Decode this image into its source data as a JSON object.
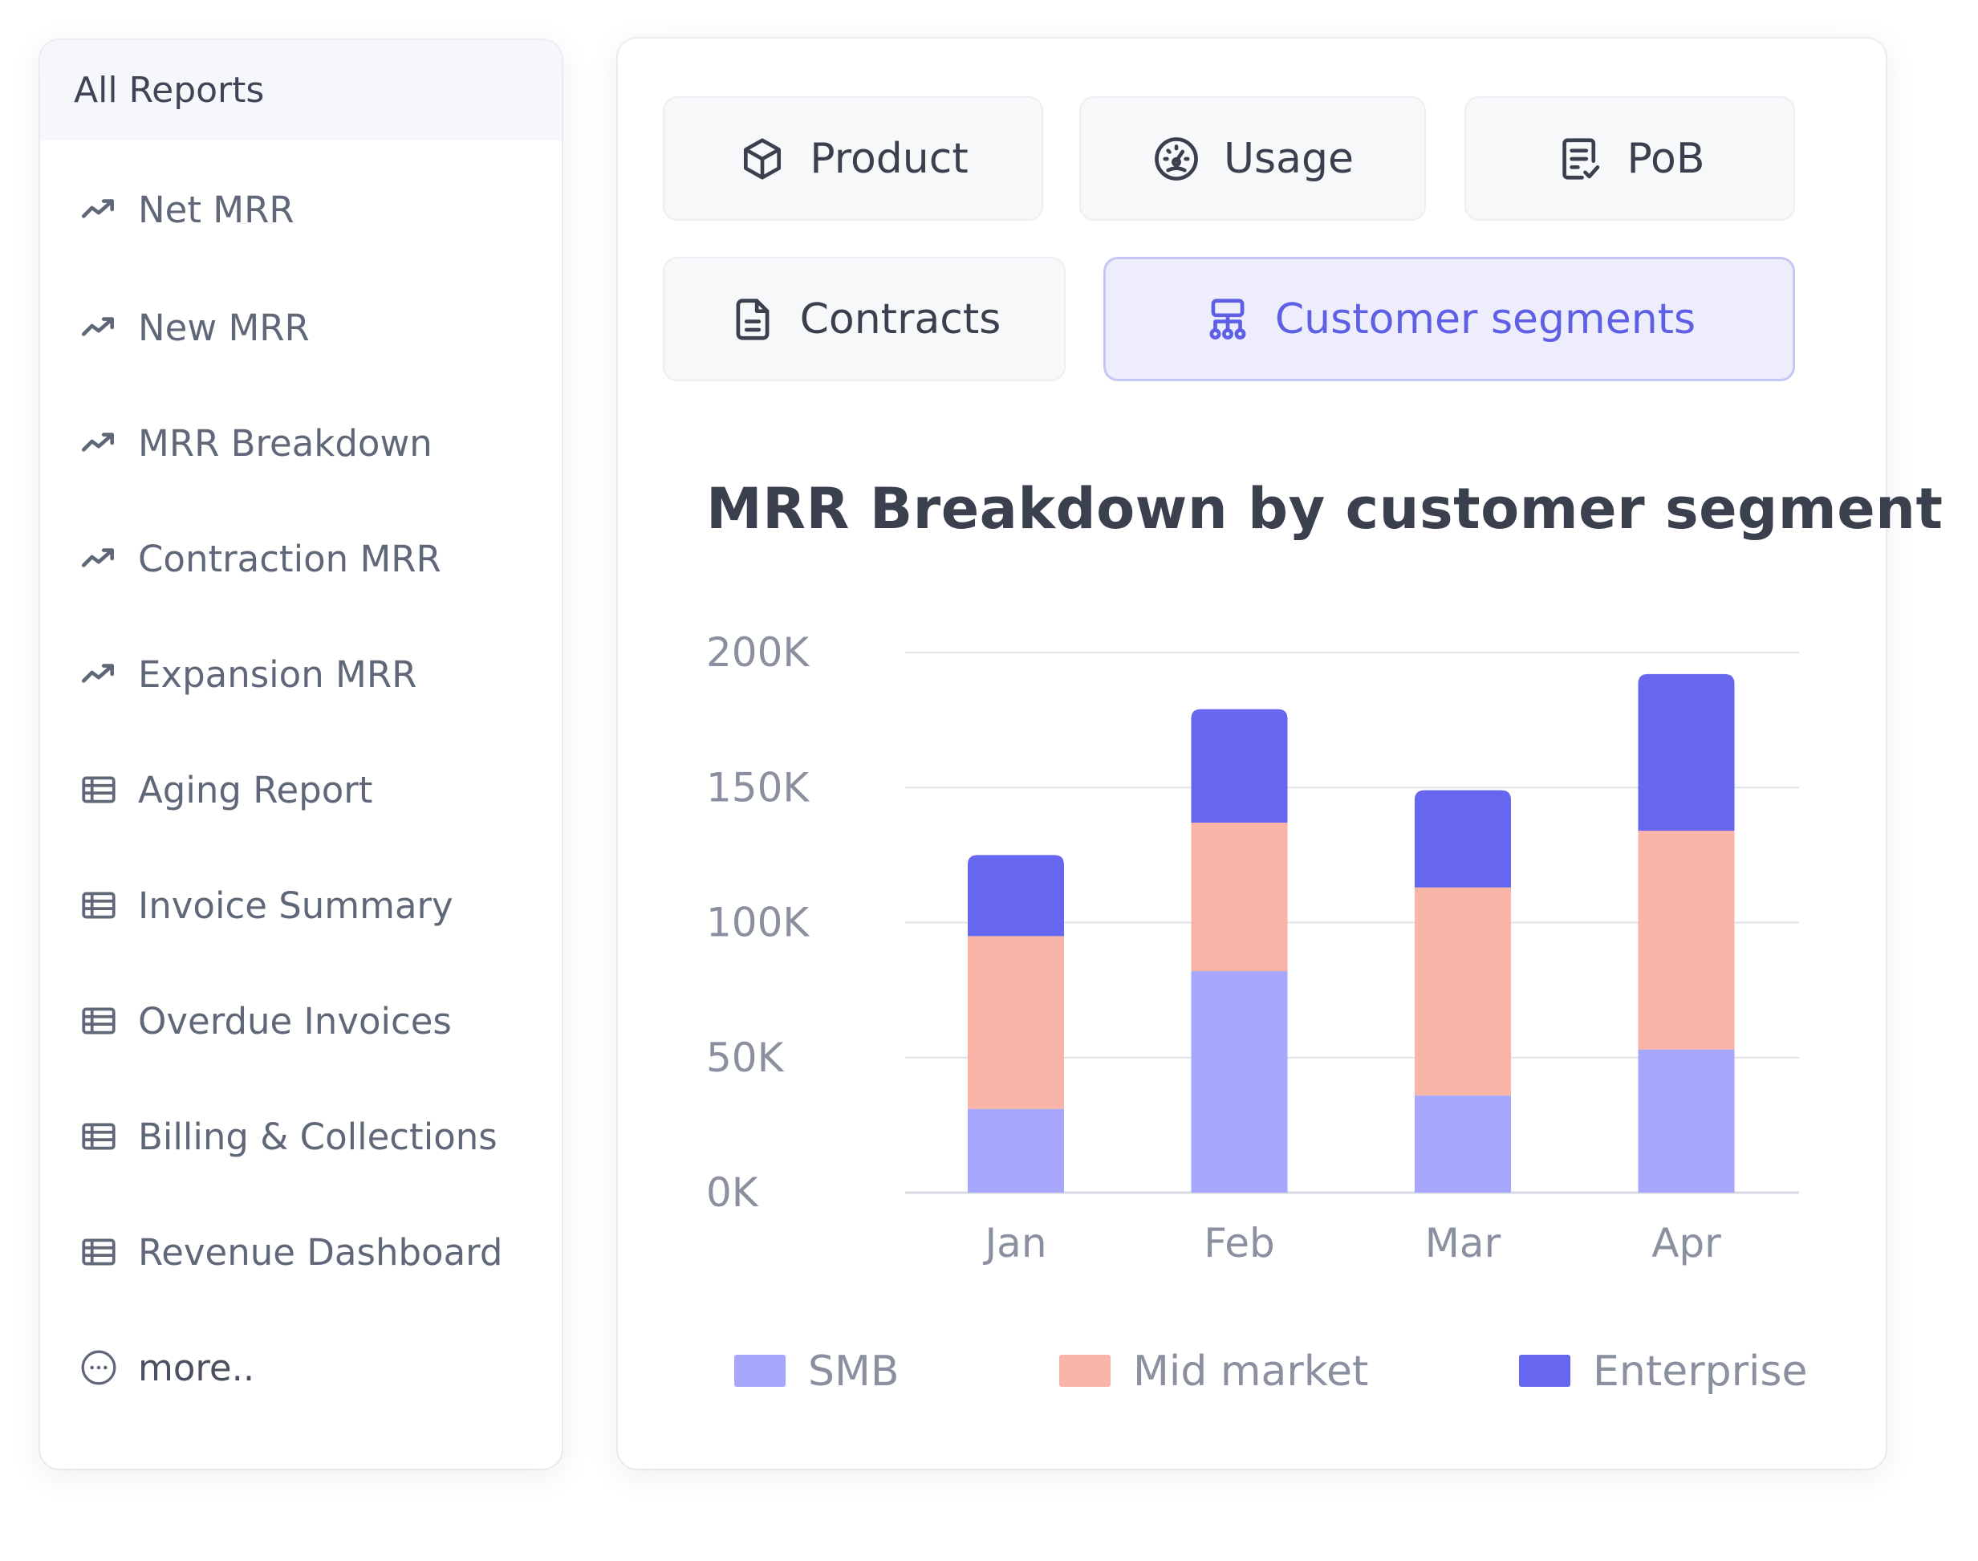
{
  "sidebar": {
    "heading": "All Reports",
    "items": [
      {
        "label": "Net MRR",
        "icon": "trend-up-icon"
      },
      {
        "label": "New MRR",
        "icon": "trend-up-icon"
      },
      {
        "label": "MRR Breakdown",
        "icon": "trend-up-icon"
      },
      {
        "label": "Contraction MRR",
        "icon": "trend-up-icon"
      },
      {
        "label": "Expansion MRR",
        "icon": "trend-up-icon"
      },
      {
        "label": "Aging Report",
        "icon": "table-icon"
      },
      {
        "label": "Invoice Summary",
        "icon": "table-icon"
      },
      {
        "label": "Overdue Invoices",
        "icon": "table-icon"
      },
      {
        "label": "Billing & Collections",
        "icon": "table-icon"
      },
      {
        "label": "Revenue Dashboard",
        "icon": "table-icon"
      },
      {
        "label": "more..",
        "icon": "more-icon"
      }
    ]
  },
  "tabs": {
    "product": {
      "label": "Product",
      "icon": "cube-icon"
    },
    "usage": {
      "label": "Usage",
      "icon": "gauge-icon"
    },
    "pob": {
      "label": "PoB",
      "icon": "checklist-document-icon"
    },
    "contracts": {
      "label": "Contracts",
      "icon": "document-icon"
    },
    "segments": {
      "label": "Customer segments",
      "icon": "hierarchy-icon",
      "active": true
    }
  },
  "colors": {
    "accent": "#5e5fe5",
    "smb": "#a6a6fa",
    "mid_market": "#f8b4a6",
    "enterprise": "#6666ee",
    "grid": "#dfe2e8",
    "axis_text": "#8a90a0"
  },
  "chart_data": {
    "type": "bar",
    "stacked": true,
    "title": "MRR Breakdown by customer segment",
    "xlabel": "",
    "ylabel": "",
    "categories": [
      "Jan",
      "Feb",
      "Mar",
      "Apr"
    ],
    "ylim": [
      0,
      200000
    ],
    "yticks": [
      0,
      50000,
      100000,
      150000,
      200000
    ],
    "ytick_labels": [
      "0K",
      "50K",
      "100K",
      "150K",
      "200K"
    ],
    "grid": true,
    "legend_position": "bottom",
    "series": [
      {
        "name": "SMB",
        "color": "#a6a6fa",
        "values": [
          31000,
          82000,
          36000,
          53000
        ]
      },
      {
        "name": "Mid market",
        "color": "#f8b4a6",
        "values": [
          64000,
          55000,
          77000,
          81000
        ]
      },
      {
        "name": "Enterprise",
        "color": "#6666ee",
        "values": [
          30000,
          42000,
          36000,
          58000
        ]
      }
    ]
  }
}
